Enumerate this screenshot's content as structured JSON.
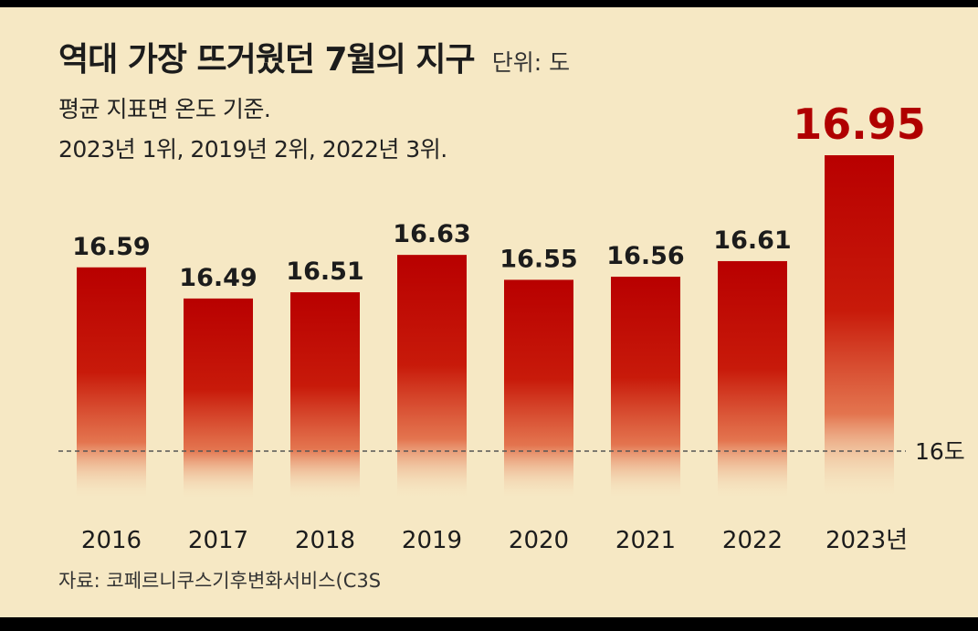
{
  "header": {
    "title": "역대 가장 뜨거웠던 7월의 지구",
    "unit": "단위: 도",
    "subtitle1": "평균 지표면 온도 기준.",
    "subtitle2": "2023년 1위, 2019년 2위, 2022년 3위."
  },
  "footer": {
    "source": "자료: 코페르니쿠스기후변화서비스(C3S"
  },
  "colors": {
    "bar": "#b80000",
    "highlight_label": "#b00000",
    "background": "#f6e8c4"
  },
  "chart_data": {
    "type": "bar",
    "categories": [
      "2016",
      "2017",
      "2018",
      "2019",
      "2020",
      "2021",
      "2022",
      "2023년"
    ],
    "values": [
      16.59,
      16.49,
      16.51,
      16.63,
      16.55,
      16.56,
      16.61,
      16.95
    ],
    "value_labels": [
      "16.59",
      "16.49",
      "16.51",
      "16.63",
      "16.55",
      "16.56",
      "16.61",
      "16.95"
    ],
    "highlight_index": 7,
    "reference_line": {
      "value": 16.0,
      "label": "16도"
    },
    "grid": false,
    "legend": "none"
  }
}
